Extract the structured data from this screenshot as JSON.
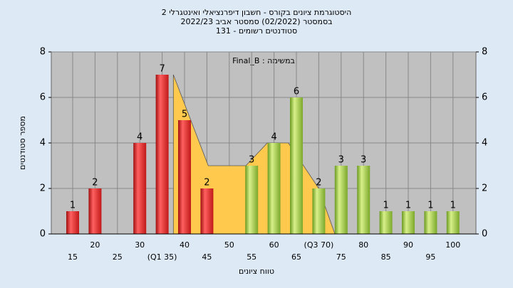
{
  "chart_data": {
    "type": "bar",
    "title": "היסטוגרמת ציונים בקורס - חשבון דיפרנציאלי ואינטגרלי 2",
    "subtitle": "בסמסטר  (02/2022)  סמסטר אביב  2022/23",
    "subtitle2": "סטודנטים רשומים - 131",
    "annotation": "Final_B : במשימה",
    "x_label": "טווח ציונים",
    "y_label": "מספר סטודנטים",
    "categories": [
      "15",
      "20",
      "25",
      "30",
      "(Q1 35)",
      "40",
      "45",
      "50",
      "55",
      "60",
      "65",
      "(Q3 70)",
      "75",
      "80",
      "85",
      "90",
      "95",
      "100"
    ],
    "values": [
      1,
      2,
      0,
      4,
      7,
      5,
      2,
      0,
      3,
      4,
      6,
      2,
      3,
      3,
      1,
      1,
      1,
      1
    ],
    "colors": [
      "red",
      "red",
      "red",
      "red",
      "red",
      "red",
      "red",
      "green",
      "green",
      "green",
      "green",
      "green",
      "green",
      "green",
      "green",
      "green",
      "green",
      "green"
    ],
    "area": {
      "x": [
        37.5,
        45.3,
        53.7,
        58.5,
        63.2,
        70,
        73.6
      ],
      "values": [
        7,
        3,
        3,
        4,
        4,
        2,
        0
      ],
      "color": "#ffc94d"
    },
    "ylim": [
      0,
      8
    ],
    "yticks": [
      0,
      2,
      4,
      6,
      8
    ],
    "grid": true
  }
}
